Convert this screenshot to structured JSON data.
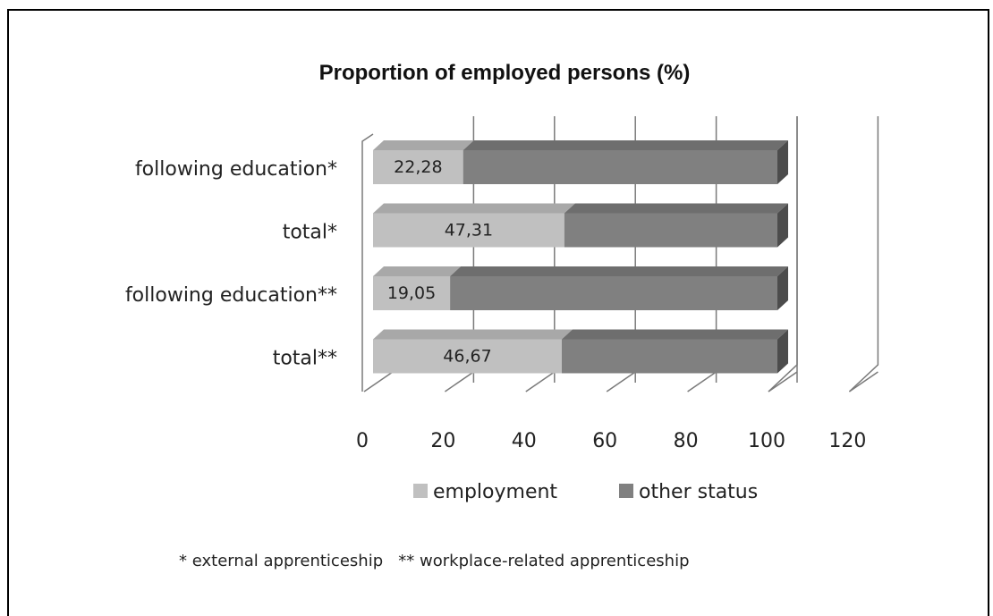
{
  "chart_data": {
    "type": "bar",
    "orientation": "horizontal",
    "stacked": true,
    "style": "3d",
    "title": "Proportion of employed persons (%)",
    "categories": [
      "following education*",
      "total*",
      "following education**",
      "total**"
    ],
    "series": [
      {
        "name": "employment",
        "values": [
          22.28,
          47.31,
          19.05,
          46.67
        ],
        "labels": [
          "22,28",
          "47,31",
          "19,05",
          "46,67"
        ],
        "color": "#c0c0c0"
      },
      {
        "name": "other status",
        "values": [
          77.72,
          52.69,
          80.95,
          53.33
        ],
        "color": "#808080"
      }
    ],
    "xlim": [
      0,
      120
    ],
    "xticks": [
      "0",
      "20",
      "40",
      "60",
      "80",
      "100",
      "120"
    ],
    "grid": true,
    "legend": "bottom",
    "footnote": "* external apprenticeship   ** workplace-related apprenticeship"
  }
}
